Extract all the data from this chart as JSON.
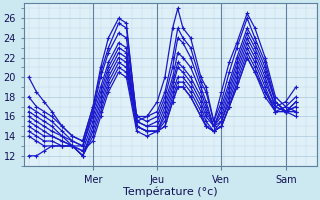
{
  "xlabel": "Température (°c)",
  "background_color": "#cce8f0",
  "plot_bg_color": "#dff0f8",
  "grid_color_major": "#aac8d8",
  "grid_color_minor": "#c0d8e8",
  "line_color": "#1a1acc",
  "day_labels": [
    "Mer",
    "Jeu",
    "Ven",
    "Sam"
  ],
  "day_positions": [
    0.25,
    0.5,
    0.75,
    1.0
  ],
  "yticks": [
    12,
    14,
    16,
    18,
    20,
    22,
    24,
    26
  ],
  "ylim": [
    11.0,
    27.5
  ],
  "xlim": [
    -0.02,
    1.12
  ],
  "series": [
    [
      0.0,
      20.0,
      0.03,
      18.5,
      0.06,
      17.5,
      0.09,
      16.5,
      0.13,
      15.0,
      0.17,
      14.0,
      0.21,
      13.5,
      0.25,
      17.0,
      0.28,
      21.0,
      0.31,
      24.0,
      0.35,
      26.0,
      0.38,
      25.5,
      0.42,
      15.5,
      0.46,
      16.0,
      0.5,
      17.5,
      0.53,
      20.0,
      0.56,
      25.0,
      0.58,
      27.0,
      0.6,
      25.0,
      0.63,
      24.0,
      0.67,
      20.0,
      0.69,
      19.0,
      0.72,
      15.5,
      0.75,
      18.5,
      0.78,
      21.5,
      0.81,
      23.5,
      0.85,
      26.5,
      0.88,
      25.0,
      0.92,
      22.0,
      0.96,
      18.0,
      1.0,
      17.0,
      1.04,
      16.5
    ],
    [
      0.0,
      18.0,
      0.03,
      17.0,
      0.06,
      16.5,
      0.09,
      16.0,
      0.13,
      15.0,
      0.17,
      14.0,
      0.21,
      13.5,
      0.25,
      17.0,
      0.28,
      20.5,
      0.31,
      23.0,
      0.35,
      25.5,
      0.38,
      25.0,
      0.42,
      16.0,
      0.46,
      16.0,
      0.5,
      16.5,
      0.53,
      18.5,
      0.56,
      22.0,
      0.58,
      25.0,
      0.6,
      24.0,
      0.63,
      23.0,
      0.67,
      19.5,
      0.69,
      18.5,
      0.72,
      15.5,
      0.75,
      17.5,
      0.78,
      20.5,
      0.81,
      23.0,
      0.85,
      26.0,
      0.88,
      24.0,
      0.92,
      21.5,
      0.96,
      17.5,
      1.0,
      16.5,
      1.04,
      16.0
    ],
    [
      0.0,
      17.0,
      0.03,
      16.5,
      0.06,
      16.0,
      0.09,
      15.5,
      0.13,
      14.5,
      0.17,
      13.5,
      0.21,
      13.0,
      0.25,
      16.5,
      0.28,
      20.0,
      0.31,
      22.5,
      0.35,
      24.5,
      0.38,
      24.0,
      0.42,
      16.0,
      0.46,
      15.5,
      0.5,
      16.0,
      0.53,
      18.0,
      0.56,
      21.0,
      0.58,
      24.0,
      0.6,
      23.5,
      0.63,
      22.0,
      0.67,
      19.0,
      0.69,
      17.5,
      0.72,
      15.0,
      0.75,
      17.0,
      0.78,
      19.5,
      0.81,
      22.0,
      0.85,
      25.0,
      0.88,
      23.5,
      0.92,
      21.0,
      0.96,
      17.5,
      1.0,
      16.5,
      1.04,
      16.5
    ],
    [
      0.0,
      16.5,
      0.03,
      16.0,
      0.06,
      15.5,
      0.09,
      15.0,
      0.13,
      14.0,
      0.17,
      13.5,
      0.21,
      13.0,
      0.25,
      16.5,
      0.28,
      19.0,
      0.31,
      21.5,
      0.35,
      23.5,
      0.38,
      23.0,
      0.42,
      15.5,
      0.46,
      15.0,
      0.5,
      15.5,
      0.53,
      17.5,
      0.56,
      20.0,
      0.58,
      22.5,
      0.6,
      22.0,
      0.63,
      21.0,
      0.67,
      18.5,
      0.69,
      17.0,
      0.72,
      15.0,
      0.75,
      16.5,
      0.78,
      19.0,
      0.81,
      21.5,
      0.85,
      24.5,
      0.88,
      23.0,
      0.92,
      20.5,
      0.96,
      17.5,
      1.0,
      16.5,
      1.04,
      16.5
    ],
    [
      0.0,
      16.0,
      0.03,
      15.5,
      0.06,
      15.0,
      0.09,
      14.5,
      0.13,
      14.0,
      0.17,
      13.0,
      0.21,
      13.0,
      0.25,
      16.0,
      0.28,
      18.5,
      0.31,
      21.0,
      0.35,
      23.0,
      0.38,
      22.5,
      0.42,
      15.5,
      0.46,
      15.0,
      0.5,
      15.0,
      0.53,
      17.0,
      0.56,
      19.5,
      0.58,
      21.5,
      0.6,
      21.0,
      0.63,
      20.0,
      0.67,
      18.0,
      0.69,
      16.5,
      0.72,
      15.0,
      0.75,
      16.0,
      0.78,
      18.5,
      0.81,
      21.0,
      0.85,
      24.0,
      0.88,
      22.5,
      0.92,
      20.0,
      0.96,
      17.0,
      1.0,
      16.5,
      1.04,
      17.0
    ],
    [
      0.0,
      15.5,
      0.03,
      15.0,
      0.06,
      14.5,
      0.09,
      14.0,
      0.13,
      13.5,
      0.17,
      13.0,
      0.21,
      12.5,
      0.25,
      15.5,
      0.28,
      18.0,
      0.31,
      20.5,
      0.35,
      22.5,
      0.38,
      22.0,
      0.42,
      15.0,
      0.46,
      14.5,
      0.5,
      14.5,
      0.53,
      16.5,
      0.56,
      19.0,
      0.58,
      21.0,
      0.6,
      20.5,
      0.63,
      19.5,
      0.67,
      17.5,
      0.69,
      16.0,
      0.72,
      15.0,
      0.75,
      15.5,
      0.78,
      18.0,
      0.81,
      20.5,
      0.85,
      23.5,
      0.88,
      22.0,
      0.92,
      19.5,
      0.96,
      17.0,
      1.0,
      16.5,
      1.04,
      17.0
    ],
    [
      0.0,
      15.0,
      0.03,
      14.5,
      0.06,
      14.0,
      0.09,
      14.0,
      0.13,
      13.5,
      0.17,
      13.0,
      0.21,
      12.0,
      0.25,
      15.0,
      0.28,
      17.5,
      0.31,
      20.0,
      0.35,
      22.0,
      0.38,
      21.5,
      0.42,
      15.0,
      0.46,
      14.5,
      0.5,
      14.5,
      0.53,
      16.0,
      0.56,
      18.5,
      0.58,
      20.0,
      0.6,
      20.0,
      0.63,
      19.0,
      0.67,
      17.0,
      0.69,
      15.5,
      0.72,
      14.5,
      0.75,
      15.5,
      0.78,
      17.5,
      0.81,
      20.0,
      0.85,
      23.0,
      0.88,
      21.5,
      0.92,
      19.0,
      0.96,
      16.5,
      1.0,
      16.5,
      1.04,
      17.5
    ],
    [
      0.0,
      14.5,
      0.03,
      14.0,
      0.06,
      13.5,
      0.09,
      13.5,
      0.13,
      13.0,
      0.17,
      13.0,
      0.21,
      12.0,
      0.25,
      14.5,
      0.28,
      17.0,
      0.31,
      19.5,
      0.35,
      21.5,
      0.38,
      21.0,
      0.42,
      15.0,
      0.46,
      14.5,
      0.5,
      14.5,
      0.53,
      15.5,
      0.56,
      18.0,
      0.58,
      19.5,
      0.6,
      19.5,
      0.63,
      18.5,
      0.67,
      16.5,
      0.69,
      15.0,
      0.72,
      14.5,
      0.75,
      15.0,
      0.78,
      17.0,
      0.81,
      19.5,
      0.85,
      22.5,
      0.88,
      21.0,
      0.92,
      18.5,
      0.96,
      16.5,
      1.0,
      16.5,
      1.04,
      17.5
    ],
    [
      0.0,
      14.0,
      0.03,
      13.5,
      0.06,
      13.0,
      0.09,
      13.0,
      0.13,
      13.0,
      0.17,
      13.0,
      0.21,
      12.0,
      0.25,
      14.0,
      0.28,
      16.5,
      0.31,
      19.0,
      0.35,
      21.0,
      0.38,
      20.5,
      0.42,
      15.0,
      0.46,
      14.5,
      0.5,
      14.5,
      0.53,
      15.0,
      0.56,
      17.5,
      0.58,
      19.0,
      0.6,
      19.0,
      0.63,
      18.0,
      0.67,
      16.0,
      0.69,
      15.0,
      0.72,
      14.5,
      0.75,
      15.0,
      0.78,
      17.0,
      0.81,
      19.0,
      0.85,
      22.0,
      0.88,
      20.5,
      0.92,
      18.0,
      0.96,
      16.5,
      1.0,
      17.0,
      1.04,
      18.0
    ],
    [
      0.0,
      12.0,
      0.03,
      12.0,
      0.06,
      12.5,
      0.09,
      13.0,
      0.13,
      13.0,
      0.17,
      13.0,
      0.21,
      12.5,
      0.25,
      13.5,
      0.28,
      16.0,
      0.31,
      18.5,
      0.35,
      20.5,
      0.38,
      20.0,
      0.42,
      14.5,
      0.46,
      14.0,
      0.5,
      14.5,
      0.53,
      15.0,
      0.56,
      17.5,
      0.58,
      19.0,
      0.6,
      19.0,
      0.63,
      18.0,
      0.67,
      16.0,
      0.69,
      15.0,
      0.72,
      14.5,
      0.75,
      15.0,
      0.78,
      17.0,
      0.81,
      19.0,
      0.85,
      22.0,
      0.88,
      20.5,
      0.92,
      18.5,
      0.96,
      17.0,
      1.0,
      17.5,
      1.04,
      19.0
    ]
  ]
}
